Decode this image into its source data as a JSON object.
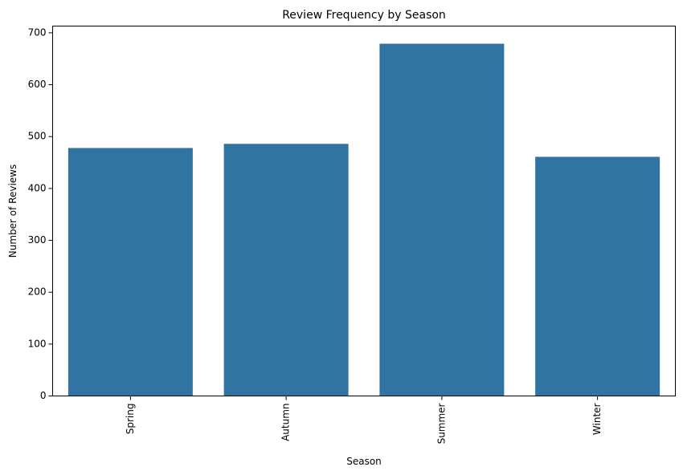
{
  "chart_data": {
    "type": "bar",
    "title": "Review Frequency by Season",
    "xlabel": "Season",
    "ylabel": "Number of Reviews",
    "categories": [
      "Spring",
      "Autumn",
      "Summer",
      "Winter"
    ],
    "values": [
      478,
      486,
      679,
      461
    ],
    "ylim": [
      0,
      713
    ],
    "yticks": [
      0,
      100,
      200,
      300,
      400,
      500,
      600,
      700
    ],
    "grid": false,
    "bar_color": "#3274a1"
  }
}
